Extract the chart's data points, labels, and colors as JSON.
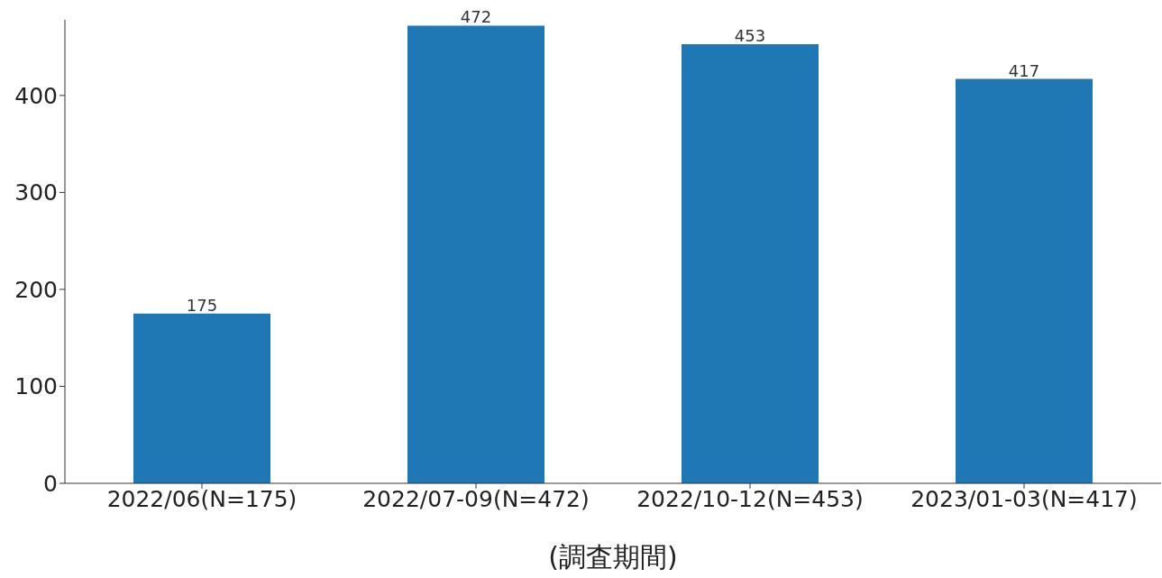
{
  "chart_data": {
    "type": "bar",
    "xlabel": "(調査期間)",
    "categories": [
      "2022/06(N=175)",
      "2022/07-09(N=472)",
      "2022/10-12(N=453)",
      "2023/01-03(N=417)"
    ],
    "values": [
      175,
      472,
      453,
      417
    ],
    "color": "#1f77b4",
    "ylim": [
      0,
      478
    ],
    "yticks": [
      0,
      100,
      200,
      300,
      400
    ],
    "grid": false,
    "legend": false,
    "data_labels": true
  }
}
